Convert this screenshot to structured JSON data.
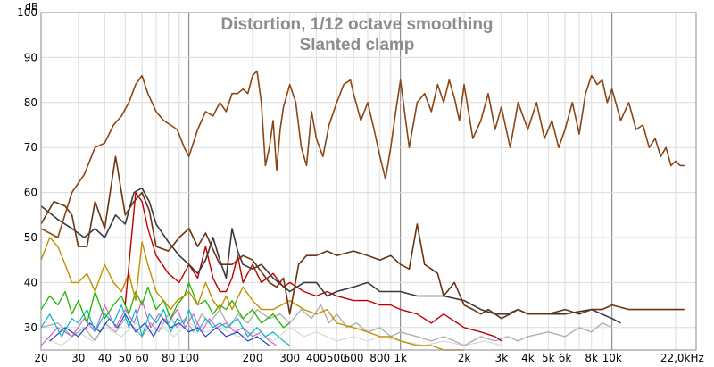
{
  "chart_data": {
    "type": "line",
    "title": "Distortion, 1/12 octave smoothing",
    "subtitle": "Slanted clamp",
    "ylabel": "dB",
    "xscale": "log",
    "xlim": [
      20,
      25000
    ],
    "ylim": [
      25,
      100
    ],
    "grid": true,
    "yticks": [
      30,
      40,
      50,
      60,
      70,
      80,
      90,
      100
    ],
    "ytick_labels": [
      "30",
      "40",
      "50",
      "60",
      "70",
      "80",
      "90",
      "100"
    ],
    "xticks": [
      20,
      30,
      40,
      50,
      60,
      80,
      100,
      200,
      300,
      400,
      500,
      600,
      800,
      1000,
      2000,
      3000,
      4000,
      5000,
      6000,
      8000,
      10000,
      22000
    ],
    "xtick_labels": [
      "20",
      "30",
      "40",
      "50",
      "60",
      "80",
      "100",
      "200",
      "300",
      "400",
      "500",
      "600",
      "800",
      "1k",
      "2k",
      "3k",
      "4k",
      "5k",
      "6k",
      "8k",
      "10k",
      "22,0kHz"
    ],
    "series": [
      {
        "color": "#8b4513",
        "width": 1.6,
        "x": [
          20,
          24,
          28,
          32,
          36,
          40,
          44,
          48,
          52,
          56,
          60,
          64,
          70,
          76,
          82,
          88,
          95,
          100,
          110,
          120,
          130,
          140,
          150,
          160,
          170,
          180,
          190,
          200,
          210,
          220,
          230,
          240,
          250,
          260,
          270,
          280,
          300,
          320,
          340,
          360,
          380,
          400,
          430,
          460,
          500,
          540,
          580,
          600,
          650,
          700,
          750,
          800,
          850,
          900,
          950,
          1000,
          1100,
          1200,
          1300,
          1400,
          1500,
          1600,
          1700,
          1800,
          1900,
          2000,
          2200,
          2400,
          2600,
          2800,
          3000,
          3300,
          3600,
          4000,
          4400,
          4800,
          5200,
          5600,
          6000,
          6500,
          7000,
          7500,
          8000,
          8500,
          9000,
          9500,
          10000,
          11000,
          12000,
          13000,
          14000,
          15000,
          16000,
          17000,
          18000,
          19000,
          20000,
          21000,
          22000
        ],
        "y": [
          52,
          50,
          60,
          64,
          70,
          71,
          75,
          77,
          80,
          84,
          86,
          82,
          78,
          76,
          75,
          74,
          70,
          68,
          74,
          78,
          77,
          80,
          78,
          82,
          82,
          83,
          82,
          86,
          87,
          80,
          66,
          70,
          76,
          65,
          74,
          79,
          84,
          80,
          70,
          66,
          78,
          72,
          68,
          75,
          80,
          84,
          85,
          82,
          76,
          80,
          74,
          68,
          63,
          70,
          78,
          85,
          70,
          80,
          82,
          78,
          84,
          80,
          85,
          81,
          76,
          84,
          72,
          76,
          82,
          74,
          79,
          70,
          80,
          74,
          80,
          72,
          76,
          70,
          74,
          80,
          73,
          82,
          86,
          84,
          85,
          80,
          83,
          76,
          80,
          74,
          75,
          70,
          72,
          68,
          70,
          66,
          67,
          66,
          66
        ]
      },
      {
        "color": "#6b3410",
        "width": 1.6,
        "x": [
          20,
          23,
          26,
          28,
          30,
          33,
          36,
          40,
          45,
          50,
          55,
          60,
          65,
          70,
          80,
          90,
          100,
          110,
          120,
          140,
          160,
          180,
          200,
          240,
          260,
          280,
          300,
          330,
          360,
          400,
          450,
          500,
          600,
          700,
          800,
          900,
          1000,
          1100,
          1200,
          1300,
          1400,
          1500,
          1600,
          1800,
          2000,
          2200,
          2400,
          2600,
          2800,
          3000,
          3300,
          3600,
          4000,
          5000,
          6000,
          7000,
          8000,
          9000,
          10000,
          12000,
          14000,
          16000,
          18000,
          20000,
          22000
        ],
        "y": [
          53,
          58,
          57,
          55,
          48,
          48,
          58,
          52,
          68,
          55,
          58,
          60,
          56,
          48,
          47,
          50,
          52,
          48,
          51,
          44,
          44,
          46,
          45,
          40,
          39,
          41,
          33,
          44,
          46,
          46,
          47,
          46,
          47,
          46,
          45,
          46,
          44,
          43,
          53,
          44,
          43,
          42,
          37,
          40,
          35,
          34,
          33,
          34,
          33,
          32,
          33,
          34,
          33,
          33,
          34,
          33,
          34,
          34,
          35,
          34,
          34,
          34,
          34,
          34,
          34
        ]
      },
      {
        "color": "#3a3a3a",
        "width": 1.6,
        "x": [
          20,
          24,
          28,
          32,
          36,
          40,
          45,
          50,
          55,
          60,
          65,
          70,
          80,
          90,
          100,
          110,
          120,
          130,
          140,
          150,
          160,
          170,
          180,
          200,
          220,
          250,
          300,
          350,
          400,
          450,
          500,
          600,
          700,
          800,
          900,
          1000,
          1200,
          1400,
          1600,
          2000,
          2400,
          2800,
          3200,
          3600,
          4000,
          5000,
          6000,
          8000,
          10000,
          11000
        ],
        "y": [
          57,
          54,
          52,
          50,
          52,
          50,
          55,
          53,
          60,
          61,
          58,
          53,
          49,
          46,
          44,
          42,
          45,
          50,
          45,
          41,
          52,
          47,
          44,
          43,
          44,
          41,
          38,
          40,
          40,
          37,
          38,
          39,
          40,
          38,
          38,
          38,
          37,
          37,
          37,
          36,
          34,
          33,
          33,
          34,
          33,
          33,
          33,
          34,
          32,
          31
        ]
      },
      {
        "color": "#c00000",
        "width": 1.4,
        "x": [
          50,
          56,
          60,
          64,
          70,
          80,
          90,
          100,
          110,
          120,
          130,
          140,
          150,
          160,
          170,
          180,
          200,
          220,
          250,
          280,
          300,
          350,
          400,
          450,
          500,
          600,
          700,
          800,
          900,
          1000,
          1200,
          1400,
          1600,
          2000,
          2400,
          2800,
          3000
        ],
        "y": [
          35,
          60,
          58,
          52,
          46,
          42,
          40,
          44,
          41,
          48,
          41,
          38,
          38,
          41,
          46,
          40,
          44,
          40,
          42,
          39,
          40,
          38,
          37,
          38,
          37,
          36,
          36,
          35,
          35,
          34,
          33,
          31,
          33,
          30,
          29,
          28,
          27
        ]
      },
      {
        "color": "#c09000",
        "width": 1.4,
        "x": [
          20,
          22,
          24,
          26,
          28,
          30,
          33,
          36,
          40,
          44,
          48,
          52,
          56,
          60,
          64,
          70,
          76,
          82,
          88,
          95,
          100,
          110,
          120,
          130,
          140,
          150,
          160,
          180,
          200,
          220,
          250,
          300,
          350,
          400,
          450,
          500,
          600,
          700,
          800,
          900,
          1000,
          1200,
          1400,
          1600,
          2000
        ],
        "y": [
          45,
          50,
          48,
          44,
          40,
          40,
          42,
          38,
          44,
          40,
          38,
          42,
          36,
          49,
          44,
          38,
          36,
          34,
          36,
          37,
          38,
          35,
          40,
          36,
          34,
          37,
          34,
          39,
          36,
          34,
          34,
          36,
          34,
          33,
          34,
          31,
          30,
          29,
          28,
          28,
          27,
          26,
          26,
          25,
          25
        ]
      },
      {
        "color": "#22b500",
        "width": 1.3,
        "x": [
          20,
          22,
          24,
          26,
          28,
          30,
          33,
          36,
          40,
          44,
          48,
          52,
          56,
          60,
          64,
          70,
          76,
          82,
          88,
          95,
          100,
          110,
          120,
          130,
          140,
          150,
          160,
          180,
          200,
          220,
          250,
          280,
          300
        ],
        "y": [
          34,
          37,
          35,
          38,
          33,
          36,
          31,
          38,
          32,
          35,
          37,
          33,
          38,
          35,
          39,
          34,
          36,
          32,
          35,
          37,
          40,
          35,
          36,
          33,
          35,
          34,
          36,
          32,
          34,
          31,
          33,
          30,
          31
        ]
      },
      {
        "color": "#00b8c8",
        "width": 1.2,
        "x": [
          20,
          22,
          25,
          28,
          30,
          33,
          36,
          40,
          44,
          48,
          52,
          56,
          60,
          65,
          70,
          76,
          82,
          88,
          95,
          100,
          110,
          120,
          130,
          140,
          150,
          170,
          190,
          210,
          230,
          250,
          280,
          300
        ],
        "y": [
          30,
          33,
          28,
          32,
          31,
          34,
          29,
          33,
          31,
          35,
          30,
          34,
          28,
          33,
          31,
          34,
          29,
          32,
          31,
          34,
          29,
          32,
          30,
          31,
          30,
          32,
          28,
          30,
          28,
          29,
          27,
          26
        ]
      },
      {
        "color": "#cc66cc",
        "width": 1.2,
        "x": [
          20,
          24,
          28,
          32,
          36,
          40,
          45,
          50,
          55,
          60,
          66,
          72,
          80,
          88,
          96,
          105,
          115,
          125,
          135,
          150,
          165,
          180,
          200,
          220,
          240,
          260
        ],
        "y": [
          26,
          30,
          28,
          32,
          29,
          35,
          30,
          34,
          31,
          36,
          30,
          33,
          31,
          34,
          30,
          33,
          29,
          32,
          30,
          31,
          29,
          30,
          28,
          29,
          27,
          26
        ]
      },
      {
        "color": "#2840c8",
        "width": 1.2,
        "x": [
          22,
          26,
          30,
          34,
          38,
          42,
          46,
          50,
          56,
          62,
          68,
          75,
          82,
          90,
          100,
          110,
          120,
          135,
          150,
          170,
          190,
          210,
          240
        ],
        "y": [
          27,
          30,
          28,
          31,
          29,
          32,
          30,
          33,
          29,
          31,
          28,
          32,
          30,
          31,
          29,
          30,
          28,
          30,
          28,
          29,
          27,
          28,
          26
        ]
      },
      {
        "color": "#b0b0b0",
        "width": 1.4,
        "x": [
          20,
          24,
          28,
          32,
          36,
          40,
          45,
          50,
          55,
          60,
          66,
          72,
          80,
          88,
          96,
          105,
          115,
          125,
          140,
          155,
          170,
          190,
          210,
          240,
          270,
          300,
          340,
          380,
          420,
          460,
          500,
          560,
          620,
          700,
          800,
          900,
          1000,
          1200,
          1400,
          1600,
          1800,
          2000,
          2400,
          2800,
          3200,
          3600,
          4000,
          5000,
          6000,
          7000,
          8000,
          9000,
          10000
        ],
        "y": [
          30,
          31,
          28,
          30,
          27,
          31,
          29,
          32,
          30,
          28,
          31,
          29,
          33,
          30,
          32,
          29,
          33,
          31,
          34,
          30,
          33,
          31,
          34,
          32,
          33,
          31,
          34,
          32,
          35,
          31,
          33,
          30,
          31,
          29,
          30,
          28,
          29,
          28,
          27,
          28,
          27,
          26,
          28,
          27,
          28,
          27,
          28,
          29,
          28,
          30,
          29,
          31,
          30
        ]
      },
      {
        "color": "#d8d8d8",
        "width": 1.2,
        "x": [
          20,
          25,
          30,
          35,
          40,
          48,
          56,
          65,
          75,
          85,
          100,
          120,
          140,
          170,
          200,
          250,
          300,
          350,
          400,
          500,
          600,
          700,
          800,
          1000,
          1300,
          1600,
          2000,
          2500,
          3000
        ],
        "y": [
          28,
          26,
          29,
          27,
          30,
          28,
          31,
          29,
          30,
          28,
          31,
          29,
          30,
          28,
          29,
          27,
          30,
          28,
          29,
          27,
          28,
          27,
          28,
          27,
          26,
          27,
          26,
          27,
          26
        ]
      }
    ]
  }
}
